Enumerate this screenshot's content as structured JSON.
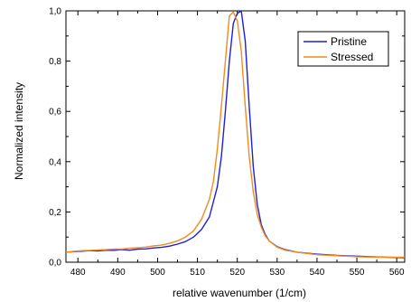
{
  "chart_data": {
    "type": "line",
    "title": "",
    "xlabel": "relative wavenumber (1/cm)",
    "ylabel": "Normalized intensity",
    "xlim": [
      477,
      562
    ],
    "ylim": [
      0,
      1.0
    ],
    "grid": false,
    "legend_position": "top-right",
    "x_ticks": [
      480,
      490,
      500,
      510,
      520,
      530,
      540,
      550,
      560
    ],
    "y_ticks": [
      0.0,
      0.2,
      0.4,
      0.6,
      0.8,
      1.0
    ],
    "y_tick_labels": [
      "0,0",
      "0,2",
      "0,4",
      "0,6",
      "0,8",
      "1,0"
    ],
    "series": [
      {
        "name": "Pristine",
        "color": "#1f1fd6",
        "x": [
          477,
          479,
          481,
          483,
          485,
          487,
          489,
          491,
          493,
          495,
          497,
          499,
          501,
          503,
          505,
          507,
          509,
          511,
          513,
          515,
          516,
          517,
          518,
          519,
          520,
          521,
          522,
          523,
          524,
          525,
          526,
          527,
          528,
          530,
          532,
          535,
          540,
          545,
          550,
          555,
          562
        ],
        "y": [
          0.04,
          0.042,
          0.044,
          0.046,
          0.045,
          0.048,
          0.047,
          0.05,
          0.048,
          0.052,
          0.053,
          0.057,
          0.059,
          0.064,
          0.072,
          0.082,
          0.1,
          0.13,
          0.18,
          0.3,
          0.42,
          0.6,
          0.8,
          0.95,
          0.99,
          1.0,
          0.88,
          0.62,
          0.38,
          0.23,
          0.15,
          0.11,
          0.085,
          0.062,
          0.05,
          0.04,
          0.032,
          0.027,
          0.024,
          0.021,
          0.018
        ]
      },
      {
        "name": "Stressed",
        "color": "#f28c1a",
        "x": [
          477,
          479,
          481,
          483,
          485,
          487,
          489,
          491,
          493,
          495,
          497,
          499,
          501,
          503,
          505,
          507,
          509,
          511,
          513,
          514,
          515,
          516,
          517,
          518,
          519,
          520,
          521,
          522,
          523,
          524,
          525,
          526,
          527,
          528,
          530,
          532,
          535,
          540,
          545,
          550,
          555,
          562
        ],
        "y": [
          0.04,
          0.043,
          0.046,
          0.047,
          0.049,
          0.05,
          0.052,
          0.052,
          0.056,
          0.058,
          0.06,
          0.065,
          0.068,
          0.075,
          0.085,
          0.1,
          0.125,
          0.17,
          0.25,
          0.32,
          0.45,
          0.62,
          0.8,
          0.98,
          0.995,
          0.96,
          0.84,
          0.62,
          0.42,
          0.28,
          0.19,
          0.14,
          0.105,
          0.085,
          0.06,
          0.048,
          0.04,
          0.03,
          0.026,
          0.022,
          0.02,
          0.02
        ]
      }
    ]
  }
}
